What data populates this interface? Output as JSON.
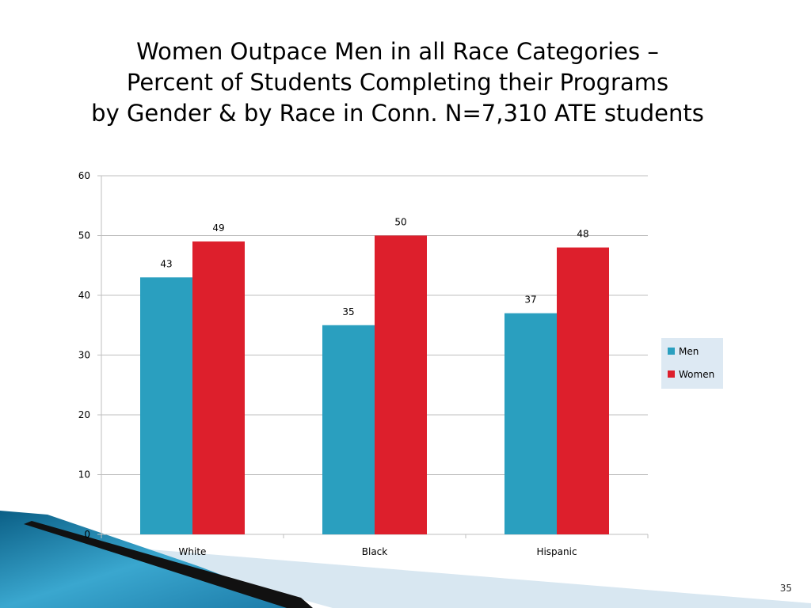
{
  "slide": {
    "title_lines": [
      "Women Outpace Men in all Race Categories –",
      "Percent of Students Completing their Programs",
      "by Gender & by Race in Conn. N=7,310 ATE students"
    ],
    "page_number": "35"
  },
  "colors": {
    "men": "#2a9fbf",
    "women": "#dd1f2c",
    "grid": "#bfbfbf",
    "legend_bg": "#dde9f3"
  },
  "chart_data": {
    "type": "bar",
    "categories": [
      "White",
      "Black",
      "Hispanic"
    ],
    "series": [
      {
        "name": "Men",
        "values": [
          43,
          35,
          37
        ]
      },
      {
        "name": "Women",
        "values": [
          49,
          50,
          48
        ]
      }
    ],
    "ylim": [
      0,
      60
    ],
    "yticks": [
      0,
      10,
      20,
      30,
      40,
      50,
      60
    ],
    "grid": true,
    "legend_position": "right",
    "data_labels": true
  }
}
